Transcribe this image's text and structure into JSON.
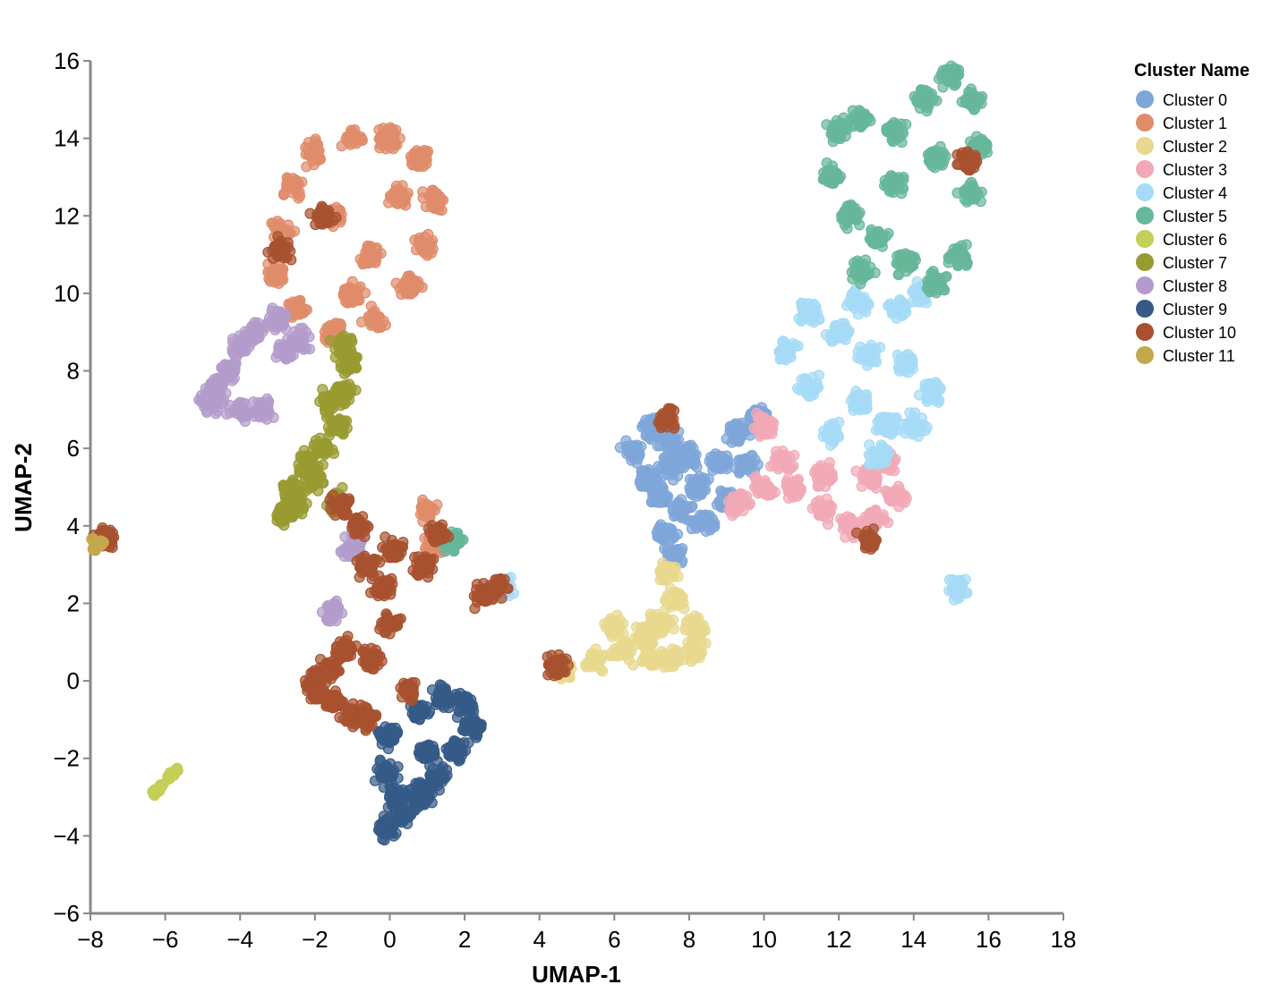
{
  "chart_data": {
    "type": "scatter",
    "xlabel": "UMAP-1",
    "ylabel": "UMAP-2",
    "xlim": [
      -8,
      18
    ],
    "ylim": [
      -6,
      16
    ],
    "xticks": [
      -8,
      -6,
      -4,
      -2,
      0,
      2,
      4,
      6,
      8,
      10,
      12,
      14,
      16,
      18
    ],
    "yticks": [
      -6,
      -4,
      -2,
      0,
      2,
      4,
      6,
      8,
      10,
      12,
      14,
      16
    ],
    "tick_labels_x": [
      "−8",
      "−6",
      "−4",
      "−2",
      "0",
      "2",
      "4",
      "6",
      "8",
      "10",
      "12",
      "14",
      "16",
      "18"
    ],
    "tick_labels_y": [
      "−6",
      "−4",
      "−2",
      "0",
      "2",
      "4",
      "6",
      "8",
      "10",
      "12",
      "14",
      "16"
    ],
    "grid": false,
    "legend": {
      "title": "Cluster Name",
      "placement": "right"
    },
    "series": [
      {
        "name": "Cluster 0",
        "color": "#7fa6d9",
        "points": [
          [
            6.5,
            5.9
          ],
          [
            7.0,
            6.5
          ],
          [
            7.5,
            6.2
          ],
          [
            8.0,
            5.8
          ],
          [
            7.5,
            5.5
          ],
          [
            7.2,
            4.8
          ],
          [
            7.8,
            4.4
          ],
          [
            8.2,
            5.0
          ],
          [
            8.8,
            5.6
          ],
          [
            9.3,
            6.4
          ],
          [
            9.8,
            6.8
          ],
          [
            9.0,
            4.7
          ],
          [
            8.4,
            4.1
          ],
          [
            7.4,
            3.8
          ],
          [
            7.6,
            3.2
          ],
          [
            6.9,
            5.2
          ],
          [
            9.5,
            5.6
          ]
        ]
      },
      {
        "name": "Cluster 1",
        "color": "#e08c6b",
        "points": [
          [
            -2.6,
            12.8
          ],
          [
            -2.0,
            13.6
          ],
          [
            -1.0,
            14.0
          ],
          [
            0.0,
            14.0
          ],
          [
            0.8,
            13.5
          ],
          [
            1.2,
            12.4
          ],
          [
            0.9,
            11.2
          ],
          [
            0.5,
            10.2
          ],
          [
            -0.4,
            9.3
          ],
          [
            -1.5,
            9.0
          ],
          [
            -2.5,
            9.6
          ],
          [
            -3.0,
            10.5
          ],
          [
            -2.9,
            11.6
          ],
          [
            -1.5,
            12.0
          ],
          [
            -0.5,
            11.0
          ],
          [
            0.2,
            12.5
          ],
          [
            -1.0,
            10.0
          ],
          [
            1.0,
            4.4
          ],
          [
            1.2,
            3.5
          ]
        ]
      },
      {
        "name": "Cluster 2",
        "color": "#e8d98f",
        "points": [
          [
            4.6,
            0.3
          ],
          [
            5.5,
            0.5
          ],
          [
            6.2,
            0.8
          ],
          [
            6.8,
            1.1
          ],
          [
            7.2,
            1.5
          ],
          [
            7.6,
            2.1
          ],
          [
            8.2,
            1.4
          ],
          [
            8.1,
            0.8
          ],
          [
            7.5,
            0.6
          ],
          [
            7.0,
            0.6
          ],
          [
            7.4,
            2.8
          ],
          [
            6.0,
            1.4
          ]
        ]
      },
      {
        "name": "Cluster 3",
        "color": "#f2a9b7",
        "points": [
          [
            9.3,
            4.6
          ],
          [
            10.0,
            5.0
          ],
          [
            10.8,
            5.0
          ],
          [
            11.6,
            4.4
          ],
          [
            12.3,
            4.0
          ],
          [
            13.0,
            4.2
          ],
          [
            13.5,
            4.8
          ],
          [
            13.3,
            5.6
          ],
          [
            12.8,
            5.2
          ],
          [
            11.6,
            5.3
          ],
          [
            10.5,
            5.7
          ],
          [
            10.0,
            6.6
          ]
        ]
      },
      {
        "name": "Cluster 4",
        "color": "#a6dbf7",
        "points": [
          [
            11.2,
            9.5
          ],
          [
            12.0,
            9.0
          ],
          [
            12.8,
            8.4
          ],
          [
            13.8,
            8.2
          ],
          [
            14.5,
            7.5
          ],
          [
            14.0,
            6.6
          ],
          [
            13.3,
            6.6
          ],
          [
            12.6,
            7.2
          ],
          [
            11.8,
            6.4
          ],
          [
            11.2,
            7.6
          ],
          [
            10.6,
            8.5
          ],
          [
            12.5,
            9.8
          ],
          [
            13.6,
            9.6
          ],
          [
            14.2,
            10.0
          ],
          [
            13.1,
            5.8
          ],
          [
            15.2,
            2.4
          ],
          [
            3.0,
            2.4
          ]
        ]
      },
      {
        "name": "Cluster 5",
        "color": "#67b79a",
        "points": [
          [
            12.0,
            14.2
          ],
          [
            12.6,
            14.5
          ],
          [
            13.5,
            14.2
          ],
          [
            14.3,
            15.0
          ],
          [
            15.0,
            15.6
          ],
          [
            15.6,
            15.0
          ],
          [
            15.8,
            13.8
          ],
          [
            15.5,
            12.6
          ],
          [
            15.2,
            11.0
          ],
          [
            14.6,
            10.3
          ],
          [
            13.8,
            10.8
          ],
          [
            13.0,
            11.4
          ],
          [
            12.3,
            12.0
          ],
          [
            11.8,
            13.0
          ],
          [
            12.6,
            10.6
          ],
          [
            13.5,
            12.8
          ],
          [
            14.6,
            13.5
          ],
          [
            1.7,
            3.6
          ]
        ]
      },
      {
        "name": "Cluster 6",
        "color": "#c3cf57",
        "points": [
          [
            -6.3,
            -2.9
          ],
          [
            -6.1,
            -2.7
          ],
          [
            -5.9,
            -2.5
          ],
          [
            -5.7,
            -2.3
          ],
          [
            -5.8,
            -2.4
          ],
          [
            -6.2,
            -2.8
          ]
        ]
      },
      {
        "name": "Cluster 7",
        "color": "#999a30",
        "points": [
          [
            -2.8,
            4.3
          ],
          [
            -2.6,
            4.9
          ],
          [
            -2.2,
            5.6
          ],
          [
            -1.8,
            6.0
          ],
          [
            -1.4,
            6.6
          ],
          [
            -1.2,
            7.4
          ],
          [
            -1.1,
            8.2
          ],
          [
            -1.2,
            8.6
          ],
          [
            -1.6,
            7.2
          ],
          [
            -2.0,
            5.2
          ],
          [
            -1.4,
            4.6
          ],
          [
            -2.5,
            4.6
          ]
        ]
      },
      {
        "name": "Cluster 8",
        "color": "#b39ccc",
        "points": [
          [
            -4.8,
            7.2
          ],
          [
            -4.6,
            7.6
          ],
          [
            -4.3,
            8.0
          ],
          [
            -4.0,
            8.6
          ],
          [
            -3.6,
            9.0
          ],
          [
            -3.0,
            9.3
          ],
          [
            -2.4,
            8.8
          ],
          [
            -2.8,
            8.5
          ],
          [
            -4.0,
            7.0
          ],
          [
            -3.4,
            7.0
          ],
          [
            -1.0,
            3.5
          ],
          [
            -1.5,
            1.8
          ]
        ]
      },
      {
        "name": "Cluster 9",
        "color": "#355a87",
        "points": [
          [
            -0.1,
            -3.8
          ],
          [
            0.3,
            -3.5
          ],
          [
            0.8,
            -3.0
          ],
          [
            1.3,
            -2.5
          ],
          [
            1.8,
            -1.8
          ],
          [
            2.2,
            -1.2
          ],
          [
            2.0,
            -0.6
          ],
          [
            1.4,
            -0.4
          ],
          [
            0.8,
            -0.8
          ],
          [
            0.0,
            -1.4
          ],
          [
            -0.1,
            -2.4
          ],
          [
            0.2,
            -3.0
          ],
          [
            1.0,
            -1.8
          ],
          [
            0.9,
            -2.8
          ]
        ]
      },
      {
        "name": "Cluster 10",
        "color": "#a8512f",
        "points": [
          [
            -2.0,
            0.0
          ],
          [
            -1.5,
            -0.5
          ],
          [
            -1.0,
            -0.9
          ],
          [
            -0.6,
            -1.0
          ],
          [
            -1.2,
            0.8
          ],
          [
            -0.5,
            0.6
          ],
          [
            0.0,
            1.5
          ],
          [
            -0.2,
            2.4
          ],
          [
            -0.6,
            3.0
          ],
          [
            -0.8,
            4.0
          ],
          [
            -1.3,
            4.5
          ],
          [
            0.1,
            3.4
          ],
          [
            0.9,
            3.0
          ],
          [
            1.3,
            3.8
          ],
          [
            0.5,
            -0.2
          ],
          [
            2.5,
            2.2
          ],
          [
            2.9,
            2.4
          ],
          [
            4.5,
            0.4
          ],
          [
            -7.6,
            3.7
          ],
          [
            12.8,
            3.6
          ],
          [
            15.4,
            13.4
          ],
          [
            -1.8,
            12.0
          ],
          [
            -2.9,
            11.1
          ],
          [
            7.4,
            6.8
          ],
          [
            -2.0,
            -0.3
          ],
          [
            -1.6,
            0.3
          ]
        ]
      },
      {
        "name": "Cluster 11",
        "color": "#c4a84c",
        "points": [
          [
            -7.9,
            3.6
          ],
          [
            -7.8,
            3.5
          ],
          [
            -7.9,
            3.4
          ],
          [
            -7.7,
            3.6
          ]
        ]
      }
    ]
  }
}
